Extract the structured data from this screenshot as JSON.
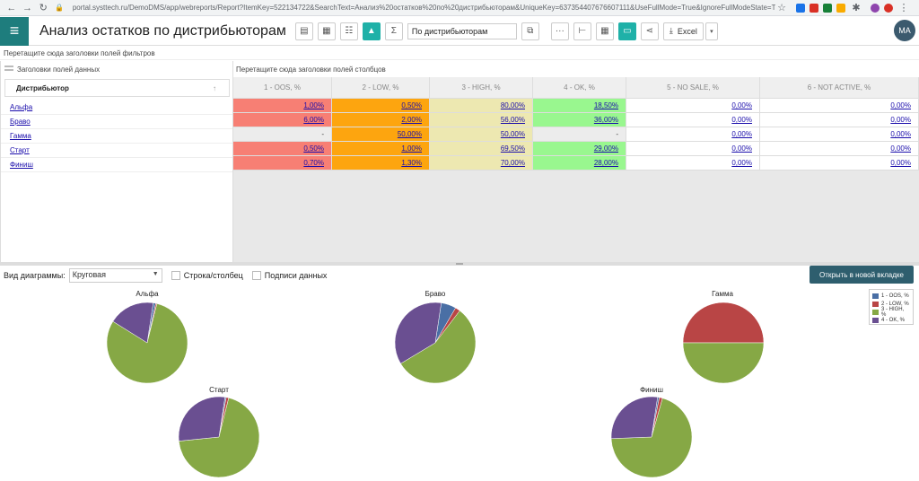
{
  "browser": {
    "url": "portal.systtech.ru/DemoDMS/app/webreports/Report?ItemKey=522134722&SearchText=Анализ%20остатков%20по%20дистрибьюторам&UniqueKey=637354407676607111&UseFullMode=True&IgnoreFullModeState=True&ViewType..."
  },
  "header": {
    "title": "Анализ остатков по дистрибьюторам",
    "view_select": "По дистрибьюторам",
    "excel_label": "Excel",
    "avatar": "MA"
  },
  "pivot": {
    "filter_drop_text": "Перетащите сюда заголовки полей фильтров",
    "data_fields_text": "Заголовки полей данных",
    "column_drop_text": "Перетащите сюда заголовки полей столбцов",
    "row_header": "Дистрибьютор",
    "columns": [
      "1 - OOS, %",
      "2 - LOW, %",
      "3 - HIGH, %",
      "4 - OK, %",
      "5 - NO SALE, %",
      "6 - NOT ACTIVE, %"
    ],
    "rows": [
      {
        "name": "Альфа",
        "cells": [
          "1,00%",
          "0,50%",
          "80,00%",
          "18,50%",
          "0,00%",
          "0,00%"
        ]
      },
      {
        "name": "Браво",
        "cells": [
          "6,00%",
          "2,00%",
          "56,00%",
          "36,00%",
          "0,00%",
          "0,00%"
        ]
      },
      {
        "name": "Гамма",
        "cells": [
          "-",
          "50,00%",
          "50,00%",
          "-",
          "0,00%",
          "0,00%"
        ]
      },
      {
        "name": "Старт",
        "cells": [
          "0,50%",
          "1,00%",
          "69,50%",
          "29,00%",
          "0,00%",
          "0,00%"
        ]
      },
      {
        "name": "Финиш",
        "cells": [
          "0,70%",
          "1,30%",
          "70,00%",
          "28,00%",
          "0,00%",
          "0,00%"
        ]
      }
    ]
  },
  "chart_controls": {
    "type_label": "Вид диаграммы:",
    "type_value": "Круговая",
    "row_col_label": "Строка/столбец",
    "data_labels_label": "Подписи данных",
    "open_tab_label": "Открыть в новой вкладке"
  },
  "colors": {
    "oos": "#4a6fa5",
    "low": "#b94545",
    "high": "#86a845",
    "ok": "#6a4f91"
  },
  "chart_data": {
    "type": "pie",
    "categories": [
      "1 - OOS, %",
      "2 - LOW, %",
      "3 - HIGH, %",
      "4 - OK, %"
    ],
    "legend_placement": "top-right",
    "series": [
      {
        "name": "Альфа",
        "values": [
          1.0,
          0.5,
          80.0,
          18.5
        ]
      },
      {
        "name": "Браво",
        "values": [
          6.0,
          2.0,
          56.0,
          36.0
        ]
      },
      {
        "name": "Гамма",
        "values": [
          0,
          50.0,
          50.0,
          0
        ]
      },
      {
        "name": "Старт",
        "values": [
          0.5,
          1.0,
          69.5,
          29.0
        ]
      },
      {
        "name": "Финиш",
        "values": [
          0.7,
          1.3,
          70.0,
          28.0
        ]
      }
    ]
  }
}
